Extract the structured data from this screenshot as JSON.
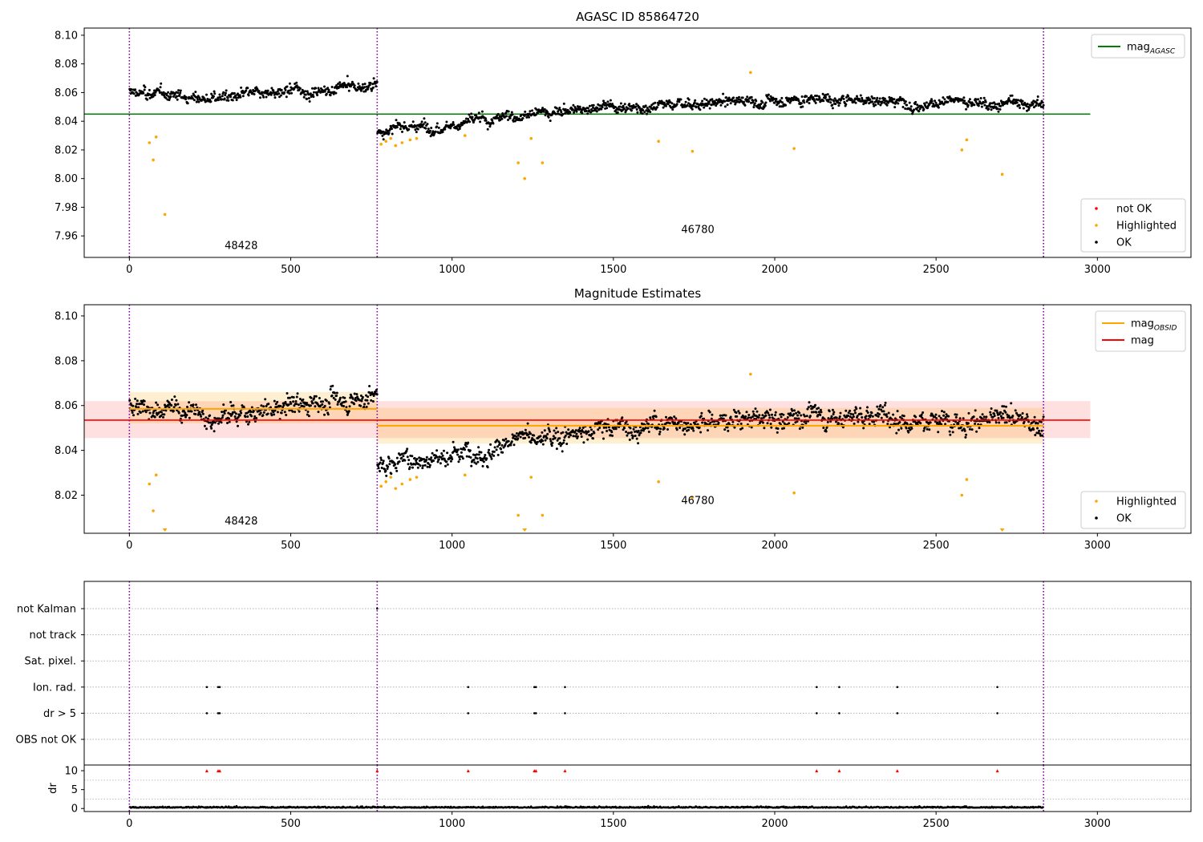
{
  "chart_data": [
    {
      "type": "scatter",
      "title": "AGASC ID 85864720",
      "xlim": [
        -140,
        3290
      ],
      "ylim": [
        7.945,
        8.105
      ],
      "xticks": [
        0,
        500,
        1000,
        1500,
        2000,
        2500,
        3000
      ],
      "yticks": [
        7.96,
        7.98,
        8.0,
        8.02,
        8.04,
        8.06,
        8.08,
        8.1
      ],
      "obs_boundaries": [
        0,
        768,
        2833
      ],
      "obs_labels": [
        {
          "x": 330,
          "y": 7.951,
          "text": "48428"
        },
        {
          "x": 1745,
          "y": 7.962,
          "text": "46780"
        }
      ],
      "reference_line": {
        "name": "mag_AGASC",
        "y": 8.045,
        "x": [
          -140,
          2978
        ],
        "color": "#008000"
      },
      "segments": [
        {
          "x": [
            0,
            768
          ],
          "trend": [
            8.06,
            8.056,
            8.06,
            8.065
          ],
          "noise": 0.006
        },
        {
          "x": [
            768,
            2833
          ],
          "trend": [
            8.033,
            8.05,
            8.056,
            8.052
          ],
          "noise": 0.006
        }
      ],
      "highlighted": [
        {
          "x": 62,
          "y": 8.025
        },
        {
          "x": 74,
          "y": 8.013
        },
        {
          "x": 83,
          "y": 8.029
        },
        {
          "x": 110,
          "y": 7.975
        },
        {
          "x": 780,
          "y": 8.024
        },
        {
          "x": 795,
          "y": 8.026
        },
        {
          "x": 810,
          "y": 8.028
        },
        {
          "x": 825,
          "y": 8.023
        },
        {
          "x": 845,
          "y": 8.025
        },
        {
          "x": 870,
          "y": 8.027
        },
        {
          "x": 890,
          "y": 8.028
        },
        {
          "x": 1040,
          "y": 8.03
        },
        {
          "x": 1205,
          "y": 8.011
        },
        {
          "x": 1225,
          "y": 8.0
        },
        {
          "x": 1245,
          "y": 8.028
        },
        {
          "x": 1280,
          "y": 8.011
        },
        {
          "x": 1640,
          "y": 8.026
        },
        {
          "x": 1745,
          "y": 8.019
        },
        {
          "x": 1925,
          "y": 8.074
        },
        {
          "x": 2060,
          "y": 8.021
        },
        {
          "x": 2580,
          "y": 8.02
        },
        {
          "x": 2595,
          "y": 8.027
        },
        {
          "x": 2705,
          "y": 8.003
        }
      ],
      "legend": [
        {
          "label": "mag",
          "sub": "AGASC",
          "color": "#008000",
          "kind": "line"
        },
        {
          "label": "not OK",
          "color": "#ff0000",
          "kind": "marker"
        },
        {
          "label": "Highlighted",
          "color": "#ffa500",
          "kind": "marker"
        },
        {
          "label": "OK",
          "color": "#000000",
          "kind": "marker"
        }
      ]
    },
    {
      "type": "scatter",
      "title": "Magnitude Estimates",
      "xlim": [
        -140,
        3290
      ],
      "ylim": [
        8.003,
        8.105
      ],
      "xticks": [
        0,
        500,
        1000,
        1500,
        2000,
        2500,
        3000
      ],
      "yticks": [
        8.02,
        8.04,
        8.06,
        8.08,
        8.1
      ],
      "obs_boundaries": [
        0,
        768,
        2833
      ],
      "obs_labels": [
        {
          "x": 330,
          "y": 8.007,
          "text": "48428"
        },
        {
          "x": 1745,
          "y": 8.016,
          "text": "46780"
        }
      ],
      "mag_band": {
        "center": 8.0535,
        "low": 8.0455,
        "high": 8.062,
        "x": [
          -140,
          2978
        ],
        "color": "#ff0000"
      },
      "obsid_mags": [
        {
          "x": [
            0,
            768
          ],
          "value": 8.0585,
          "low": 8.052,
          "high": 8.066
        },
        {
          "x": [
            768,
            2833
          ],
          "value": 8.051,
          "low": 8.043,
          "high": 8.059
        }
      ],
      "segments": [
        {
          "x": [
            0,
            768
          ],
          "trend": [
            8.06,
            8.056,
            8.06,
            8.065
          ],
          "noise": 0.007
        },
        {
          "x": [
            768,
            2833
          ],
          "trend": [
            8.033,
            8.05,
            8.056,
            8.052
          ],
          "noise": 0.007
        }
      ],
      "highlighted": [
        {
          "x": 62,
          "y": 8.025
        },
        {
          "x": 74,
          "y": 8.013
        },
        {
          "x": 83,
          "y": 8.029
        },
        {
          "x": 780,
          "y": 8.024
        },
        {
          "x": 795,
          "y": 8.026
        },
        {
          "x": 810,
          "y": 8.028
        },
        {
          "x": 825,
          "y": 8.023
        },
        {
          "x": 845,
          "y": 8.025
        },
        {
          "x": 870,
          "y": 8.027
        },
        {
          "x": 890,
          "y": 8.028
        },
        {
          "x": 1040,
          "y": 8.029
        },
        {
          "x": 1205,
          "y": 8.011
        },
        {
          "x": 1245,
          "y": 8.028
        },
        {
          "x": 1280,
          "y": 8.011
        },
        {
          "x": 1640,
          "y": 8.026
        },
        {
          "x": 1745,
          "y": 8.019
        },
        {
          "x": 1925,
          "y": 8.074
        },
        {
          "x": 2060,
          "y": 8.021
        },
        {
          "x": 2580,
          "y": 8.02
        },
        {
          "x": 2595,
          "y": 8.027
        }
      ],
      "below_range": [
        110,
        1225,
        2705
      ],
      "legend_top": [
        {
          "label": "mag",
          "sub": "OBSID",
          "color": "#ffa500",
          "kind": "line"
        },
        {
          "label": "mag",
          "color": "#ff0000",
          "kind": "line"
        }
      ],
      "legend_bottom": [
        {
          "label": "Highlighted",
          "color": "#ffa500",
          "kind": "marker"
        },
        {
          "label": "OK",
          "color": "#000000",
          "kind": "marker"
        }
      ]
    },
    {
      "type": "scatter",
      "xlim": [
        -140,
        3290
      ],
      "obs_boundaries": [
        0,
        768,
        2833
      ],
      "flag_rows": [
        "not Kalman",
        "not track",
        "Sat. pixel.",
        "Ion. rad.",
        "dr > 5",
        "OBS not OK"
      ],
      "flag_points": [
        {
          "row": "Ion. rad.",
          "x": [
            240,
            275,
            280,
            1050,
            1255,
            1260,
            1350,
            2130,
            2200,
            2380,
            2690
          ]
        },
        {
          "row": "dr > 5",
          "x": [
            240,
            275,
            280,
            1050,
            1255,
            1260,
            1350,
            2130,
            2200,
            2380,
            2690
          ]
        },
        {
          "row": "not Kalman",
          "x": [
            768
          ]
        }
      ]
    },
    {
      "type": "scatter",
      "xlim": [
        -140,
        3290
      ],
      "ylim": [
        -0.8,
        11.5
      ],
      "yticks": [
        0,
        5,
        10
      ],
      "ylabel": "dr",
      "xticks": [
        0,
        500,
        1000,
        1500,
        2000,
        2500,
        3000
      ],
      "obs_boundaries": [
        0,
        768,
        2833
      ],
      "clipped_markers": [
        240,
        275,
        280,
        768,
        1050,
        1255,
        1260,
        1350,
        2130,
        2200,
        2380,
        2690
      ],
      "clip_value": 10
    }
  ]
}
